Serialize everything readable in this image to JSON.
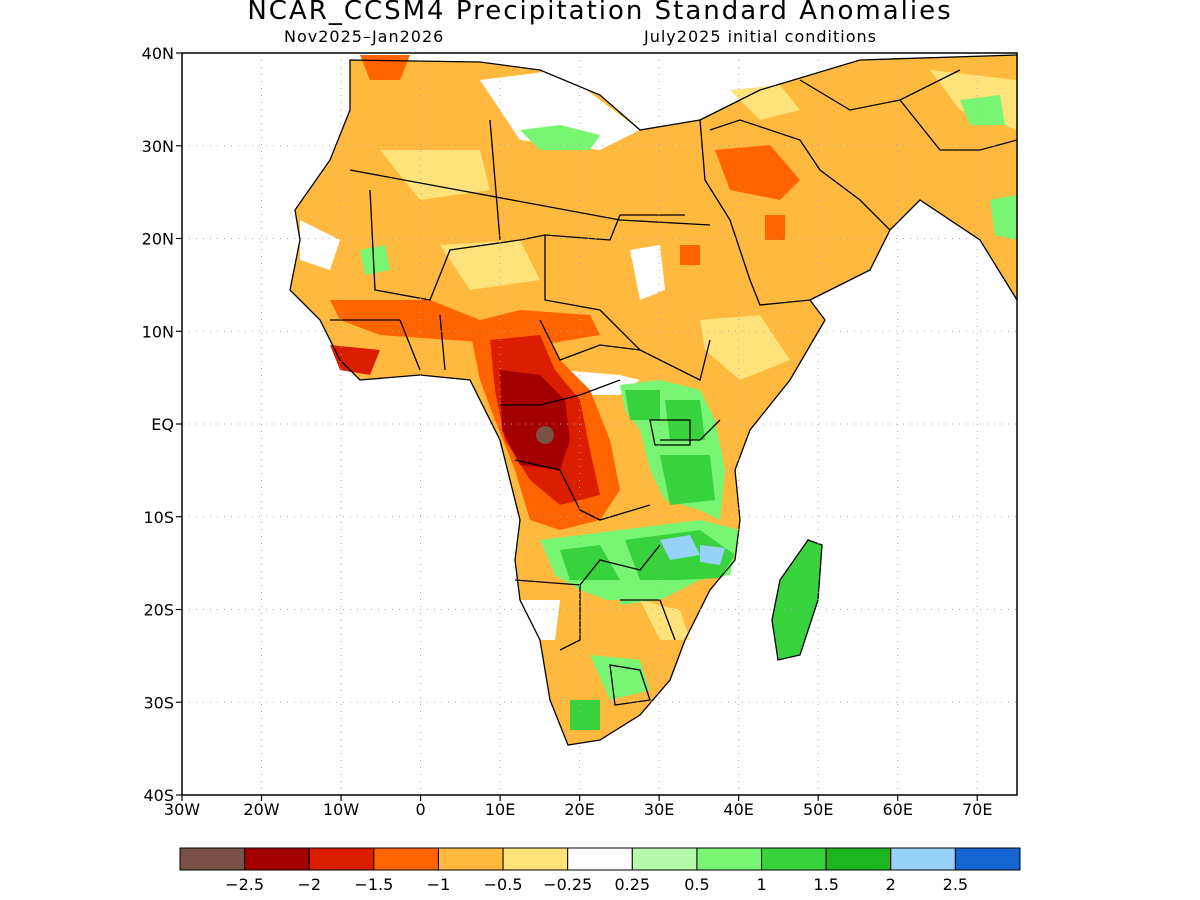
{
  "title": "NCAR_CCSM4 Precipitation Standard Anomalies",
  "subtitle_left": "Nov2025–Jan2026",
  "subtitle_right": "July2025 initial conditions",
  "map": {
    "lon_range": [
      -30,
      75
    ],
    "lat_range": [
      -40,
      40
    ],
    "lat_labels": [
      "40N",
      "30N",
      "20N",
      "10N",
      "EQ",
      "10S",
      "20S",
      "30S",
      "40S"
    ],
    "lat_values": [
      40,
      30,
      20,
      10,
      0,
      -10,
      -20,
      -30,
      -40
    ],
    "lon_labels": [
      "30W",
      "20W",
      "10W",
      "0",
      "10E",
      "20E",
      "30E",
      "40E",
      "50E",
      "60E",
      "70E"
    ],
    "lon_values": [
      -30,
      -20,
      -10,
      0,
      10,
      20,
      30,
      40,
      50,
      60,
      70
    ],
    "grid": "dotted"
  },
  "colorbar": {
    "colors": [
      "#7a5146",
      "#a50000",
      "#dc1e00",
      "#ff6400",
      "#ffb93f",
      "#ffe27a",
      "#ffffff",
      "#b4faaa",
      "#78f573",
      "#37d23c",
      "#1eb41e",
      "#96d2fa",
      "#1464d2"
    ],
    "labels": [
      "−2.5",
      "−2",
      "−1.5",
      "−1",
      "−0.5",
      "−0.25",
      "0.25",
      "0.5",
      "1",
      "1.5",
      "2",
      "2.5"
    ]
  }
}
